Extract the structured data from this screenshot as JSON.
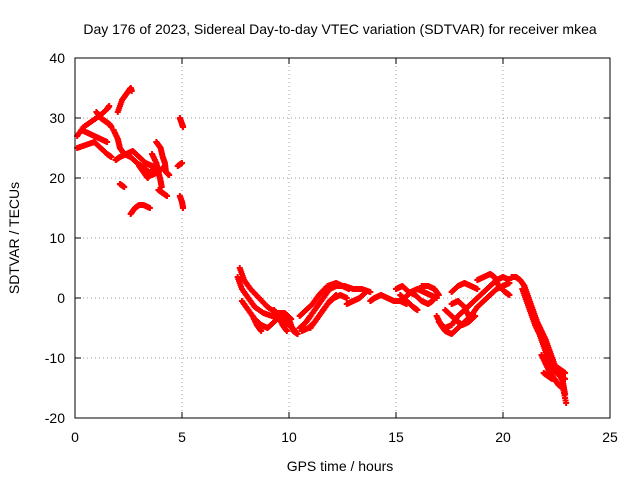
{
  "chart_data": {
    "type": "scatter",
    "title": "Day 176 of 2023, Sidereal Day-to-day VTEC variation (SDTVAR) for receiver mkea",
    "xlabel": "GPS time / hours",
    "ylabel": "SDTVAR / TECUs",
    "xlim": [
      0,
      25
    ],
    "ylim": [
      -20,
      40
    ],
    "xticks": [
      0,
      5,
      10,
      15,
      20,
      25
    ],
    "yticks": [
      -20,
      -10,
      0,
      10,
      20,
      30,
      40
    ],
    "grid": true,
    "marker": "+",
    "series": [
      {
        "name": "mkea",
        "color": "#ff0000",
        "segments": [
          [
            [
              0.1,
              27
            ],
            [
              0.4,
              28.5
            ],
            [
              0.8,
              29.5
            ],
            [
              1.2,
              30.5
            ],
            [
              1.5,
              31.5
            ],
            [
              1.6,
              32
            ]
          ],
          [
            [
              0.1,
              25
            ],
            [
              0.5,
              25.5
            ],
            [
              0.9,
              26
            ],
            [
              1.2,
              25
            ],
            [
              1.5,
              24
            ],
            [
              1.7,
              23.5
            ]
          ],
          [
            [
              0.3,
              28
            ],
            [
              0.6,
              27.5
            ],
            [
              0.9,
              27
            ],
            [
              1.2,
              26.5
            ],
            [
              1.5,
              26
            ]
          ],
          [
            [
              1.0,
              31
            ],
            [
              1.2,
              30
            ],
            [
              1.4,
              29.5
            ],
            [
              1.6,
              29
            ],
            [
              1.7,
              28.5
            ]
          ],
          [
            [
              1.8,
              28
            ],
            [
              2.0,
              26.5
            ],
            [
              2.1,
              25
            ],
            [
              2.3,
              24
            ],
            [
              2.6,
              23.5
            ],
            [
              2.9,
              22.5
            ],
            [
              3.3,
              21.5
            ],
            [
              3.6,
              20.5
            ],
            [
              3.9,
              21
            ],
            [
              4.2,
              22
            ]
          ],
          [
            [
              2.0,
              31
            ],
            [
              2.2,
              33
            ],
            [
              2.4,
              34
            ],
            [
              2.6,
              35
            ],
            [
              2.65,
              34.5
            ]
          ],
          [
            [
              1.9,
              23
            ],
            [
              2.1,
              23.5
            ],
            [
              2.4,
              24
            ],
            [
              2.7,
              24.5
            ],
            [
              3.0,
              23.5
            ],
            [
              3.3,
              22.5
            ],
            [
              3.6,
              22
            ]
          ],
          [
            [
              3.8,
              26
            ],
            [
              4.0,
              25
            ],
            [
              4.1,
              23.5
            ],
            [
              4.2,
              22.5
            ],
            [
              4.25,
              21
            ],
            [
              4.4,
              20.5
            ]
          ],
          [
            [
              3.6,
              24
            ],
            [
              3.8,
              22.5
            ],
            [
              3.9,
              21
            ],
            [
              4.0,
              19.5
            ],
            [
              4.05,
              18.5
            ]
          ],
          [
            [
              3.0,
              22
            ],
            [
              3.2,
              21
            ],
            [
              3.4,
              20
            ],
            [
              3.6,
              21
            ],
            [
              3.7,
              22
            ]
          ],
          [
            [
              2.1,
              19
            ],
            [
              2.3,
              18.5
            ]
          ],
          [
            [
              2.6,
              14
            ],
            [
              2.8,
              15
            ],
            [
              3.0,
              15.5
            ],
            [
              3.2,
              15.5
            ],
            [
              3.5,
              15
            ]
          ],
          [
            [
              3.9,
              18
            ],
            [
              4.1,
              17.5
            ],
            [
              4.3,
              17
            ]
          ],
          [
            [
              4.9,
              30
            ],
            [
              5.0,
              29
            ],
            [
              5.05,
              28.5
            ]
          ],
          [
            [
              4.8,
              22
            ],
            [
              5.0,
              22.5
            ]
          ],
          [
            [
              4.9,
              17
            ],
            [
              5.0,
              16
            ],
            [
              5.05,
              15
            ]
          ],
          [
            [
              7.6,
              3.5
            ],
            [
              7.8,
              1.5
            ],
            [
              8.1,
              0
            ],
            [
              8.4,
              -1.5
            ],
            [
              8.8,
              -2.5
            ],
            [
              9.2,
              -3
            ],
            [
              9.6,
              -3.5
            ],
            [
              10.0,
              -4.5
            ],
            [
              10.3,
              -5.5
            ]
          ],
          [
            [
              7.7,
              5
            ],
            [
              7.9,
              3
            ],
            [
              8.2,
              1.5
            ],
            [
              8.6,
              0
            ],
            [
              9.0,
              -1.5
            ],
            [
              9.4,
              -2.5
            ],
            [
              9.8,
              -2.5
            ],
            [
              10.1,
              -3.5
            ]
          ],
          [
            [
              7.8,
              -0.5
            ],
            [
              8.1,
              -2
            ],
            [
              8.4,
              -3.5
            ],
            [
              8.7,
              -4.5
            ],
            [
              9.0,
              -5
            ],
            [
              9.3,
              -4
            ],
            [
              9.6,
              -3
            ],
            [
              10.0,
              -3.5
            ],
            [
              10.2,
              -5.5
            ],
            [
              10.4,
              -6
            ]
          ],
          [
            [
              8.3,
              -3
            ],
            [
              8.5,
              -4.5
            ],
            [
              8.7,
              -5.5
            ]
          ],
          [
            [
              9.3,
              -2
            ],
            [
              9.5,
              -3
            ],
            [
              9.7,
              -4.5
            ],
            [
              9.9,
              -5.5
            ]
          ],
          [
            [
              10.5,
              -5
            ],
            [
              10.8,
              -4
            ],
            [
              11.0,
              -3
            ],
            [
              11.3,
              -1.5
            ],
            [
              11.6,
              0
            ],
            [
              11.9,
              1.5
            ],
            [
              12.2,
              2
            ],
            [
              12.6,
              2
            ],
            [
              13.0,
              1.5
            ],
            [
              13.4,
              1.5
            ],
            [
              13.8,
              1
            ]
          ],
          [
            [
              10.5,
              -3
            ],
            [
              10.8,
              -2
            ],
            [
              11.1,
              -1
            ],
            [
              11.4,
              0.5
            ],
            [
              11.8,
              2
            ],
            [
              12.2,
              2.5
            ],
            [
              12.5,
              2
            ],
            [
              12.8,
              1.5
            ]
          ],
          [
            [
              10.6,
              -5.5
            ],
            [
              10.9,
              -5
            ],
            [
              11.2,
              -4
            ],
            [
              11.5,
              -2.5
            ],
            [
              11.8,
              -1
            ],
            [
              12.1,
              0
            ],
            [
              12.4,
              0.5
            ],
            [
              12.7,
              0
            ]
          ],
          [
            [
              11.0,
              -5
            ],
            [
              11.3,
              -3.5
            ],
            [
              11.6,
              -2
            ],
            [
              11.9,
              -0.5
            ],
            [
              12.2,
              0.5
            ]
          ],
          [
            [
              12.7,
              -1
            ],
            [
              13.0,
              -0.5
            ],
            [
              13.3,
              0
            ],
            [
              13.6,
              1
            ]
          ],
          [
            [
              13.8,
              -0.5
            ],
            [
              14.0,
              0
            ],
            [
              14.3,
              0.5
            ],
            [
              14.6,
              0
            ],
            [
              14.9,
              -0.5
            ],
            [
              15.2,
              -0.5
            ],
            [
              15.5,
              -1
            ]
          ],
          [
            [
              15.4,
              0
            ],
            [
              15.7,
              1
            ],
            [
              16.0,
              1.5
            ],
            [
              16.3,
              1
            ],
            [
              16.6,
              0.5
            ],
            [
              16.9,
              0
            ]
          ],
          [
            [
              15.0,
              1.5
            ],
            [
              15.3,
              2
            ],
            [
              15.6,
              1
            ],
            [
              15.9,
              0.5
            ],
            [
              16.2,
              -0.5
            ],
            [
              16.5,
              -1
            ],
            [
              16.7,
              -0.5
            ]
          ],
          [
            [
              16.2,
              2
            ],
            [
              16.5,
              2
            ],
            [
              16.8,
              1.5
            ],
            [
              17.0,
              0.5
            ]
          ],
          [
            [
              15.2,
              0.5
            ],
            [
              15.5,
              -0.5
            ],
            [
              15.8,
              -1.5
            ],
            [
              16.0,
              -2
            ]
          ],
          [
            [
              16.9,
              -3
            ],
            [
              17.1,
              -4.5
            ],
            [
              17.3,
              -5.5
            ],
            [
              17.6,
              -6
            ],
            [
              17.9,
              -5
            ],
            [
              18.2,
              -4
            ],
            [
              18.5,
              -3
            ],
            [
              18.8,
              -1.5
            ],
            [
              19.1,
              -0.5
            ],
            [
              19.4,
              0.5
            ],
            [
              19.7,
              1.5
            ],
            [
              20.0,
              2
            ],
            [
              20.3,
              2.5
            ]
          ],
          [
            [
              17.0,
              -4
            ],
            [
              17.3,
              -5
            ],
            [
              17.6,
              -4.5
            ],
            [
              17.9,
              -3
            ],
            [
              18.2,
              -2
            ],
            [
              18.5,
              -1
            ],
            [
              18.8,
              0
            ],
            [
              19.1,
              1
            ],
            [
              19.4,
              2
            ],
            [
              19.7,
              3
            ],
            [
              20.0,
              3.5
            ],
            [
              20.3,
              3
            ]
          ],
          [
            [
              17.3,
              -2
            ],
            [
              17.6,
              -3
            ],
            [
              17.9,
              -4
            ],
            [
              18.1,
              -4.5
            ],
            [
              18.4,
              -4
            ],
            [
              18.7,
              -3
            ]
          ],
          [
            [
              17.6,
              -1
            ],
            [
              17.9,
              -0.5
            ],
            [
              18.2,
              -1.5
            ],
            [
              18.4,
              -3
            ]
          ],
          [
            [
              17.6,
              1
            ],
            [
              17.9,
              2
            ],
            [
              18.2,
              2.5
            ],
            [
              18.5,
              2
            ],
            [
              18.8,
              1.5
            ]
          ],
          [
            [
              18.8,
              3
            ],
            [
              19.1,
              3.5
            ],
            [
              19.4,
              4
            ],
            [
              19.6,
              3.5
            ],
            [
              19.8,
              2
            ],
            [
              20.1,
              1
            ],
            [
              20.3,
              0.5
            ]
          ],
          [
            [
              20.4,
              3.5
            ],
            [
              20.6,
              3.5
            ],
            [
              20.8,
              3
            ],
            [
              21.0,
              2
            ],
            [
              21.2,
              0
            ],
            [
              21.4,
              -2
            ],
            [
              21.6,
              -4
            ],
            [
              21.8,
              -5.5
            ],
            [
              22.0,
              -7
            ],
            [
              22.2,
              -9
            ],
            [
              22.4,
              -11
            ],
            [
              22.6,
              -12.5
            ],
            [
              22.8,
              -14
            ],
            [
              22.9,
              -16
            ]
          ],
          [
            [
              20.9,
              1.5
            ],
            [
              21.1,
              -0.5
            ],
            [
              21.3,
              -2.5
            ],
            [
              21.5,
              -4.5
            ],
            [
              21.7,
              -6
            ],
            [
              21.9,
              -8
            ],
            [
              22.1,
              -10
            ],
            [
              22.3,
              -11.5
            ],
            [
              22.5,
              -12.5
            ],
            [
              22.7,
              -13
            ],
            [
              22.9,
              -13.5
            ]
          ],
          [
            [
              21.8,
              -9.5
            ],
            [
              22.0,
              -11
            ],
            [
              22.2,
              -12.5
            ],
            [
              22.4,
              -13.5
            ],
            [
              22.6,
              -14.5
            ],
            [
              22.8,
              -15
            ],
            [
              22.95,
              -17.5
            ]
          ],
          [
            [
              22.5,
              -11.5
            ],
            [
              22.7,
              -12
            ],
            [
              22.9,
              -12.5
            ]
          ],
          [
            [
              21.9,
              -12.5
            ],
            [
              22.1,
              -13
            ],
            [
              22.3,
              -13.5
            ]
          ]
        ]
      }
    ]
  }
}
